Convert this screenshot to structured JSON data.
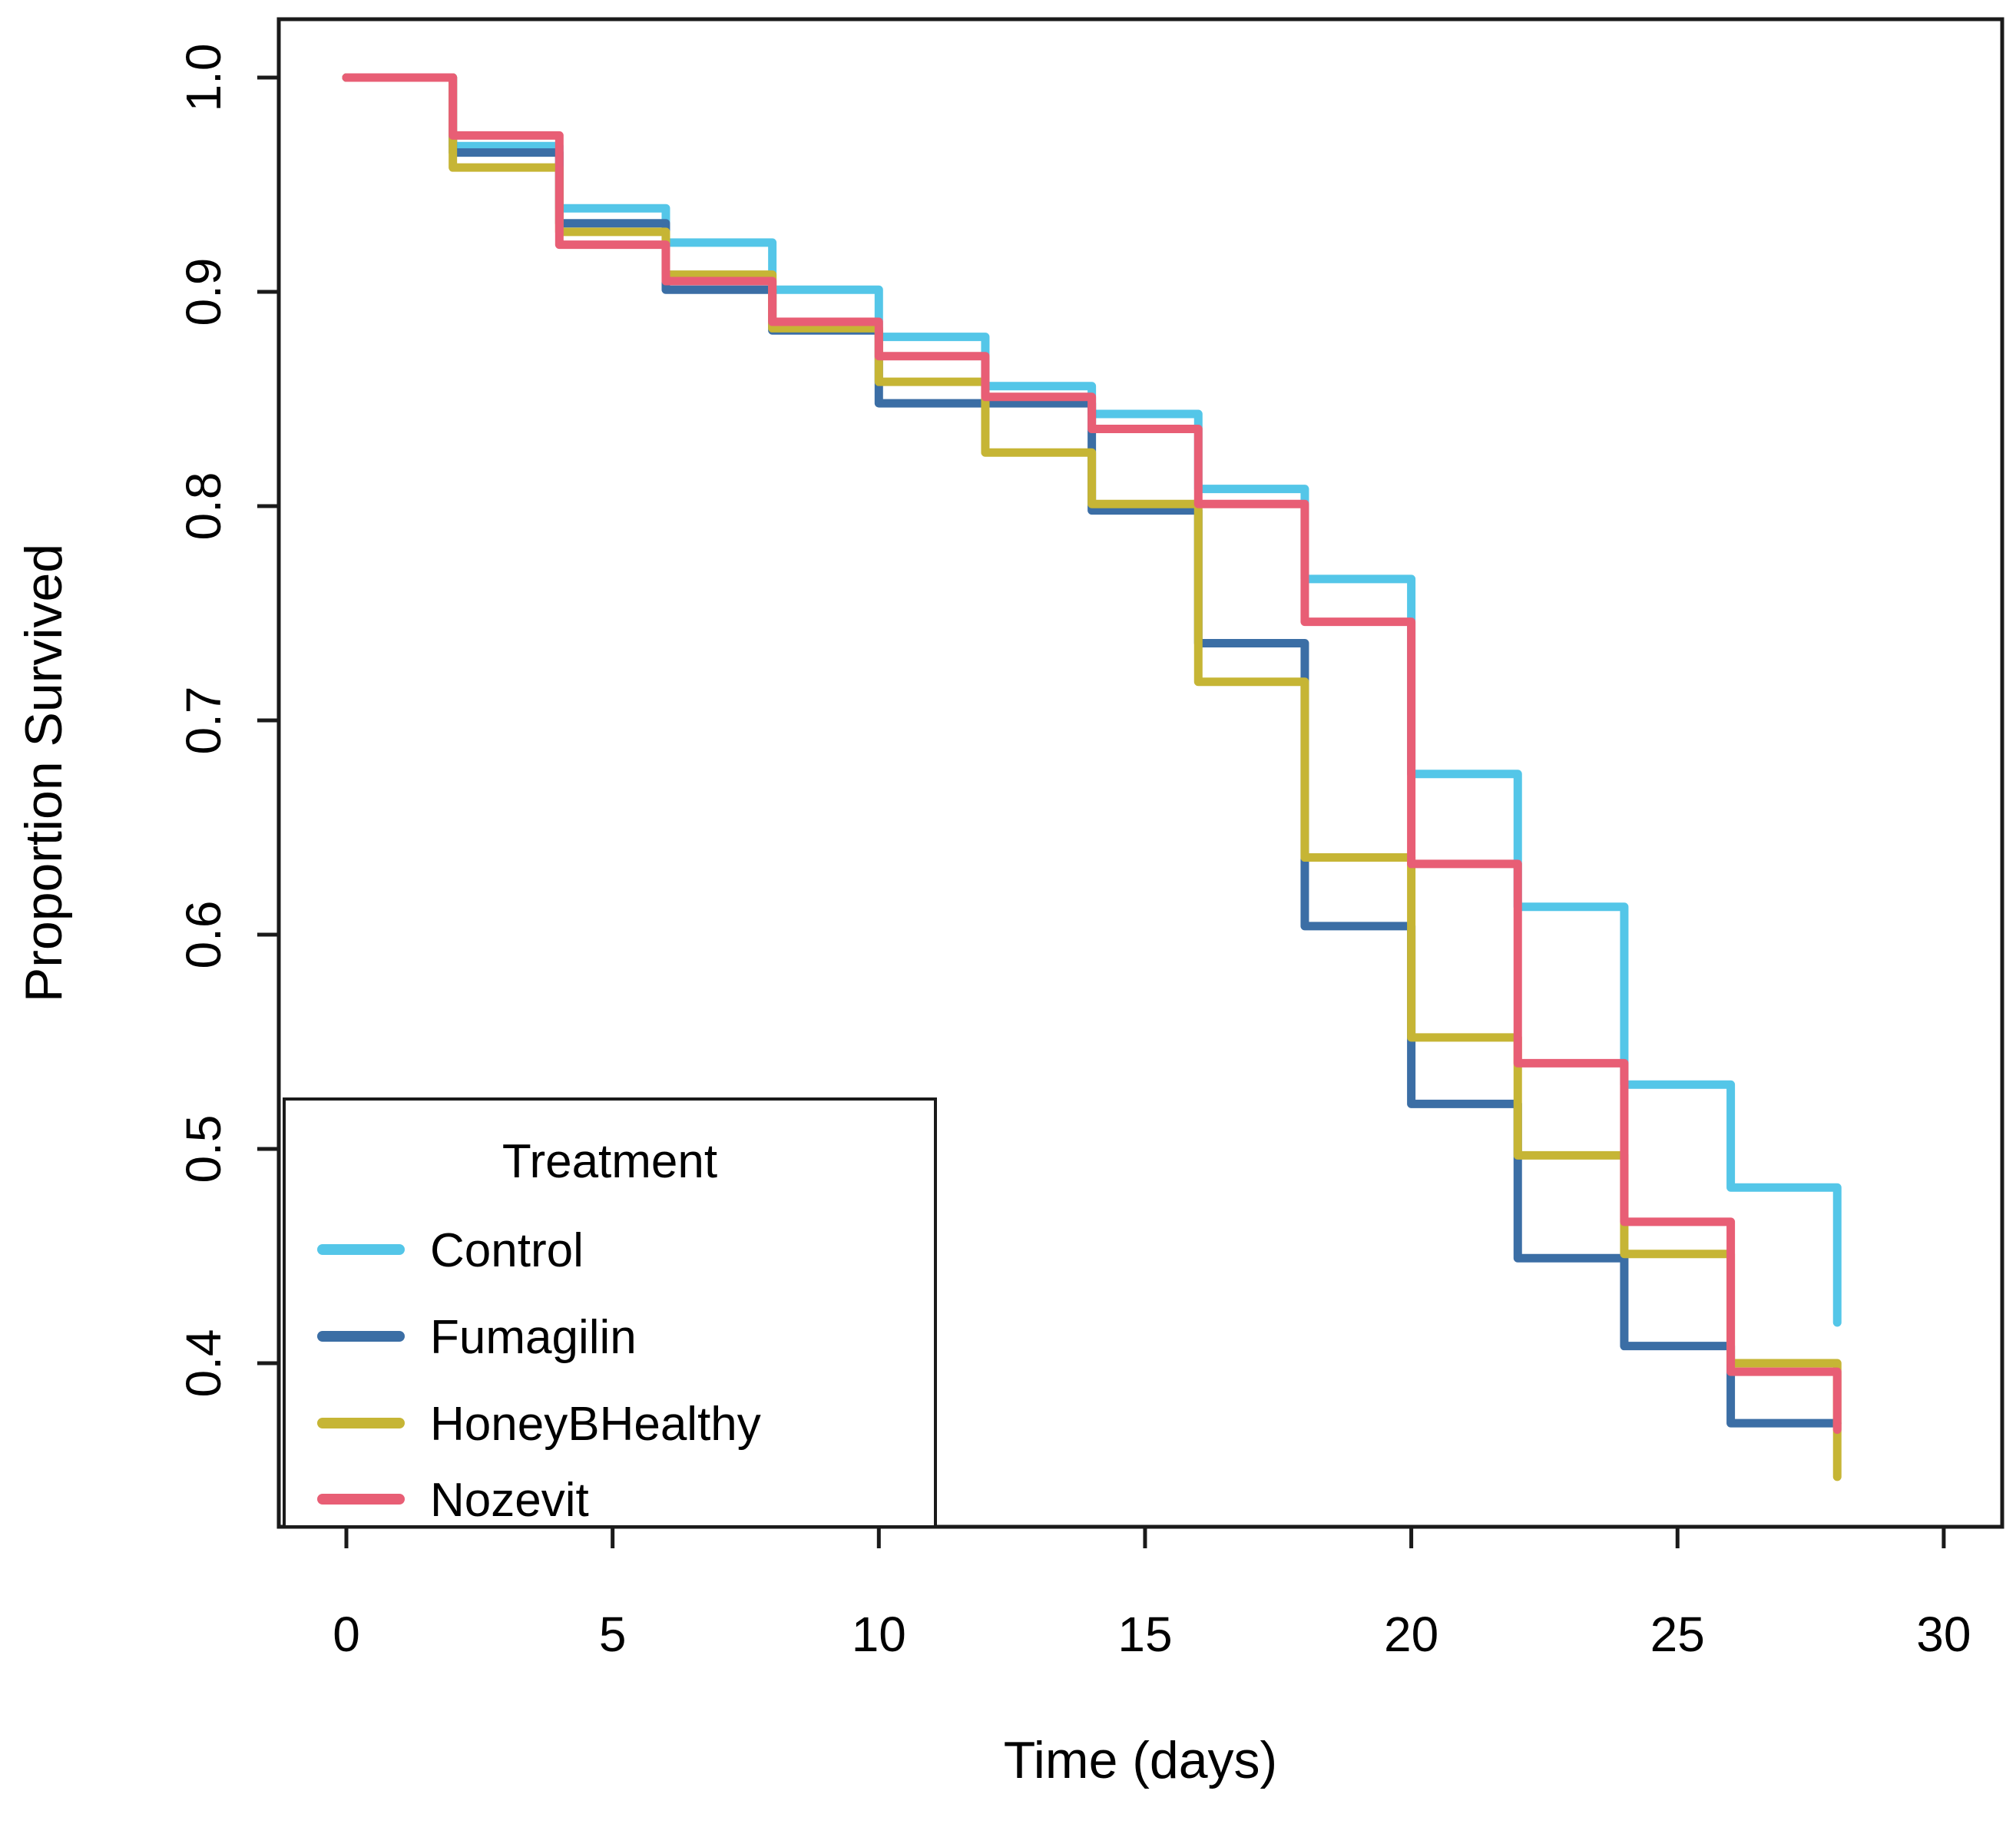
{
  "chart_data": {
    "type": "line",
    "subtype": "kaplan-meier-step",
    "title": "",
    "xlabel": "Time (days)",
    "ylabel": "Proportion Survived",
    "xlim": [
      -1.2,
      31.1
    ],
    "ylim": [
      0.32,
      1.03
    ],
    "grid": false,
    "x_ticks": [
      0,
      5,
      10,
      15,
      20,
      25,
      30
    ],
    "x_tick_labels": [
      "0",
      "5",
      "10",
      "15",
      "20",
      "25",
      "30"
    ],
    "y_ticks": [
      1.0,
      0.9,
      0.8,
      0.7,
      0.6,
      0.5,
      0.4
    ],
    "y_tick_labels": [
      "1.0",
      "0.9",
      "0.8",
      "0.7",
      "0.6",
      "0.5",
      "0.4"
    ],
    "step_times": [
      0,
      2,
      4,
      6,
      8,
      10,
      12,
      14,
      16,
      18,
      20,
      22,
      24,
      26
    ],
    "end_time": 28,
    "legend": {
      "title": "Treatment",
      "position": "bottom-left",
      "entries": [
        "Control",
        "Fumagilin",
        "HoneyBHealthy",
        "Nozevit"
      ]
    },
    "series": [
      {
        "name": "Control",
        "color": "#54C6E8",
        "values": [
          1.0,
          0.968,
          0.939,
          0.923,
          0.901,
          0.879,
          0.856,
          0.843,
          0.808,
          0.766,
          0.675,
          0.613,
          0.53,
          0.482
        ],
        "end_value": 0.419
      },
      {
        "name": "Fumagilin",
        "color": "#3B6EA5",
        "values": [
          1.0,
          0.965,
          0.932,
          0.901,
          0.882,
          0.848,
          0.848,
          0.798,
          0.736,
          0.604,
          0.521,
          0.449,
          0.408,
          0.372
        ],
        "end_value": 0.372
      },
      {
        "name": "HoneyBHealthy",
        "color": "#C6B535",
        "values": [
          1.0,
          0.958,
          0.928,
          0.908,
          0.883,
          0.858,
          0.825,
          0.801,
          0.718,
          0.636,
          0.552,
          0.497,
          0.451,
          0.4
        ],
        "end_value": 0.347
      },
      {
        "name": "Nozevit",
        "color": "#E85E75",
        "values": [
          1.0,
          0.973,
          0.922,
          0.905,
          0.886,
          0.87,
          0.851,
          0.836,
          0.801,
          0.746,
          0.633,
          0.54,
          0.466,
          0.396
        ],
        "end_value": 0.369
      }
    ],
    "style": {
      "axis_color": "#1a1a1a",
      "background": "#ffffff",
      "curve_width": 11,
      "tick_font_size": 64,
      "label_font_size": 68,
      "legend_font_size": 62
    }
  }
}
